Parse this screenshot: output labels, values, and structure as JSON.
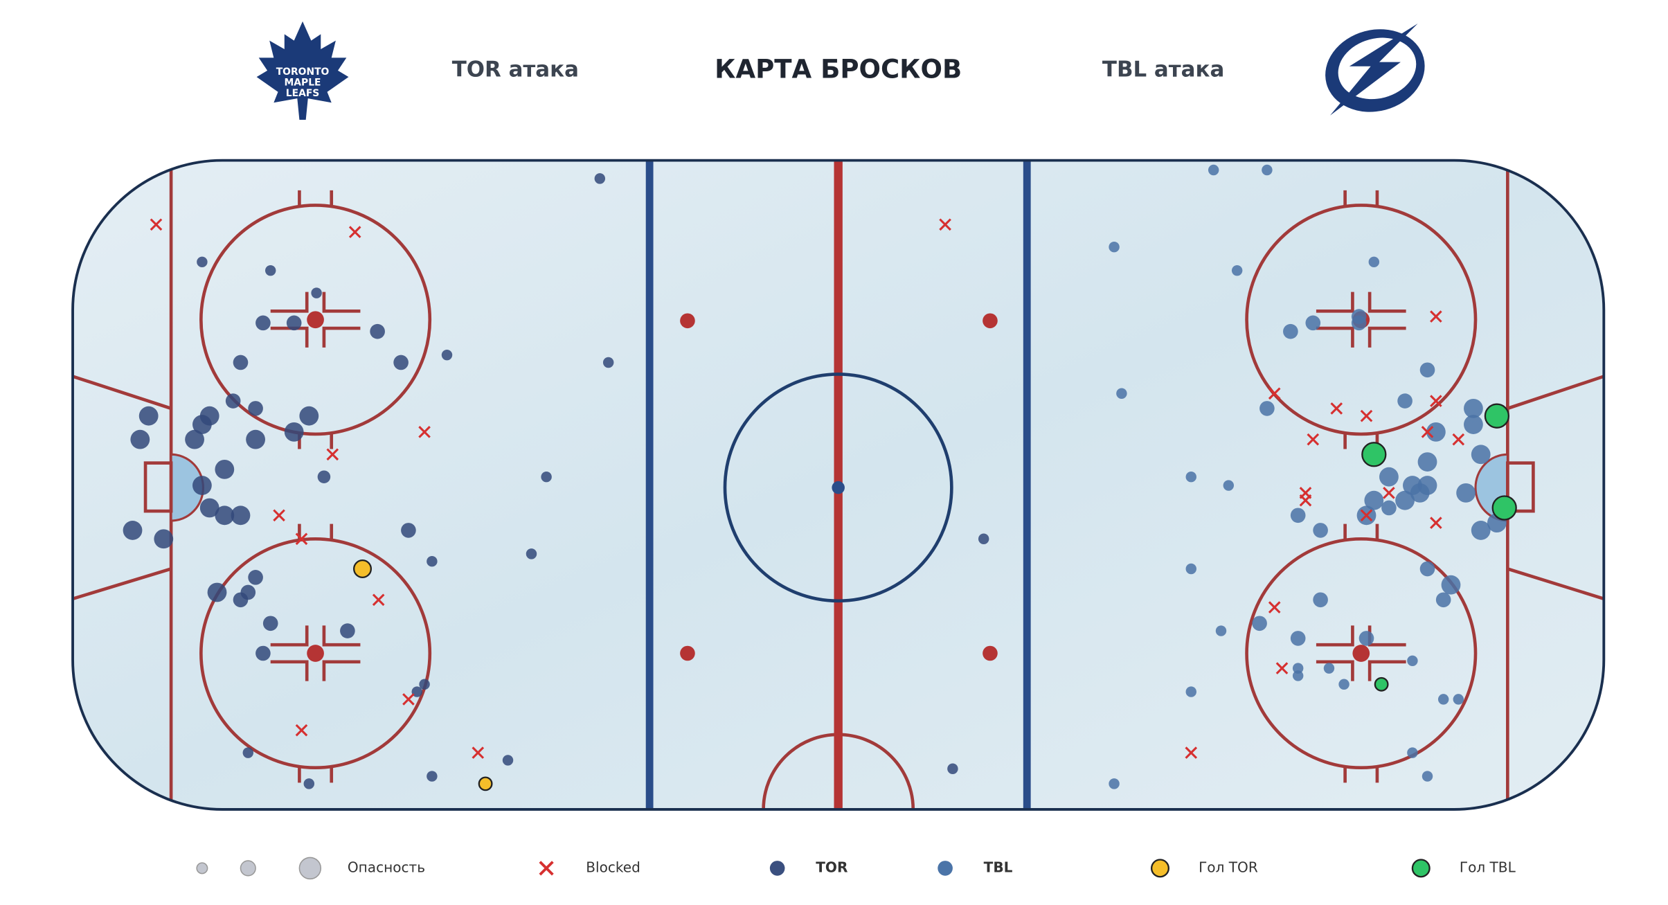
{
  "header": {
    "title": "КАРТА БРОСКОВ",
    "home_attack": "TOR атака",
    "away_attack": "TBL атака",
    "home_logo": [
      "TORONTO",
      "MAPLE",
      "LEAFS"
    ]
  },
  "legend": {
    "danger": "Опасность",
    "blocked": "Blocked",
    "tor": "TOR",
    "tbl": "TBL",
    "goal_tor": "Гол TOR",
    "goal_tbl": "Гол TBL"
  }
}
